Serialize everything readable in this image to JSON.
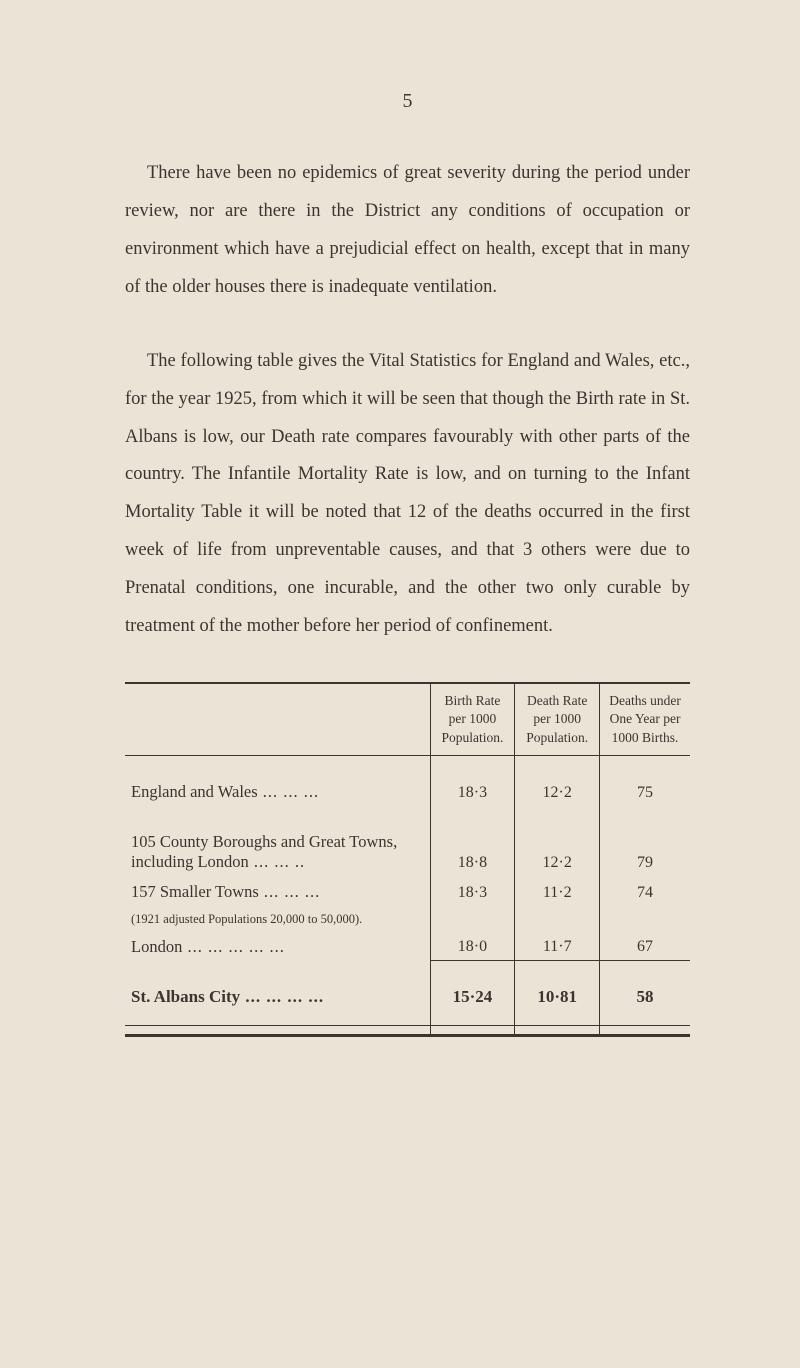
{
  "page_number": "5",
  "paragraphs": {
    "p1": "There have been no epidemics of great severity during the period under review, nor are there in the District any conditions of occupation or environment which have a pre­judicial effect on health, except that in many of the older houses there is inadequate ventilation.",
    "p2": "The following table gives the Vital Statistics for Eng­land and Wales, etc., for the year 1925, from which it will be seen that though the Birth rate in St. Albans is low, our Death rate compares favourably with other parts of the country. The Infantile Mortality Rate is low, and on turning to the Infant Mortality Table it will be noted that 12 of the deaths occurred in the first week of life from un­preventable causes, and that 3 others were due to Prenatal conditions, one incurable, and the other two only curable by treatment of the mother before her period of confinement."
  },
  "table": {
    "columns": [
      "",
      "Birth Rate per 1000 Popula­tion.",
      "Death Rate per 1000 Popula­tion.",
      "Deaths under One Year per 1000 Births."
    ],
    "column_widths": [
      "54%",
      "15%",
      "15%",
      "16%"
    ],
    "rows": [
      {
        "label": "England and Wales",
        "dots": "dots",
        "vals": [
          "18·3",
          "12·2",
          "75"
        ]
      },
      {
        "label": "105 County Boroughs and Great Towns, including London",
        "dots": "dots2",
        "vals": [
          "18·8",
          "12·2",
          "79"
        ]
      },
      {
        "label": "157 Smaller Towns",
        "dots": "dots",
        "sub": "(1921 adjusted Populations 20,000 to 50,000).",
        "vals": [
          "18·3",
          "11·2",
          "74"
        ]
      },
      {
        "label": "London",
        "dots": "dots5",
        "vals": [
          "18·0",
          "11·7",
          "67"
        ]
      }
    ],
    "total": {
      "label": "St. Albans City",
      "dots": "dots4",
      "vals": [
        "15·24",
        "10·81",
        "58"
      ]
    }
  },
  "colors": {
    "background": "#ebe3d5",
    "text": "#3a3530",
    "rule": "#3a3530"
  },
  "typography": {
    "body_size_pt": 14,
    "line_height": 2.05,
    "table_size_pt": 12
  }
}
